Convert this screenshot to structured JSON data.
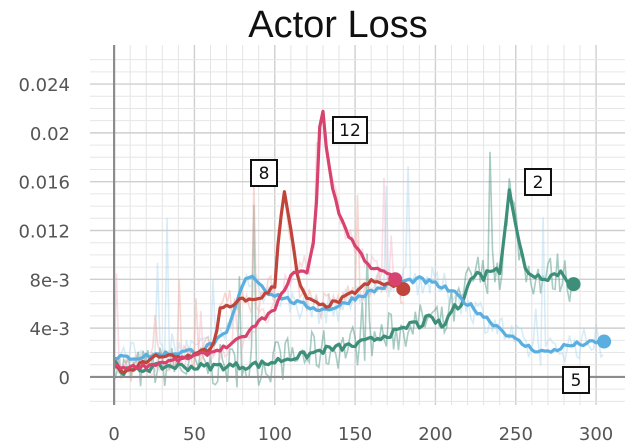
{
  "chart_data": {
    "type": "line",
    "title": "Actor Loss",
    "xlabel": "",
    "ylabel": "",
    "xlim": [
      -15,
      318
    ],
    "ylim": [
      -0.0023,
      0.0272
    ],
    "grid": true,
    "x_ticks": [
      0,
      50,
      100,
      150,
      200,
      250,
      300
    ],
    "x_tick_labels": [
      "0",
      "50",
      "100",
      "150",
      "200",
      "250",
      "300"
    ],
    "y_ticks": [
      0,
      0.004,
      0.008,
      0.012,
      0.016,
      0.02,
      0.024
    ],
    "y_tick_labels": [
      "0",
      "4e-3",
      "8e-3",
      "0.012",
      "0.016",
      "0.02",
      "0.024"
    ],
    "series": [
      {
        "name": "2",
        "color": "#3d8f7a",
        "raw_color": "#3d8f7a",
        "x": [
          0,
          3,
          10,
          20,
          35,
          50,
          65,
          80,
          95,
          110,
          120,
          130,
          140,
          150,
          160,
          170,
          180,
          185,
          190,
          195,
          200,
          205,
          210,
          215,
          220,
          225,
          230,
          235,
          240,
          243,
          246,
          248,
          252,
          256,
          262,
          270,
          278,
          282,
          286
        ],
        "y": [
          0.0015,
          0.0006,
          0.0004,
          0.0007,
          0.0009,
          0.0008,
          0.0009,
          0.0009,
          0.0011,
          0.0016,
          0.0018,
          0.0022,
          0.0024,
          0.0026,
          0.003,
          0.0035,
          0.0038,
          0.0045,
          0.0042,
          0.0048,
          0.0046,
          0.004,
          0.0055,
          0.0058,
          0.0075,
          0.0085,
          0.0082,
          0.009,
          0.0085,
          0.012,
          0.0155,
          0.014,
          0.011,
          0.0088,
          0.0083,
          0.0082,
          0.0086,
          0.008,
          0.0076
        ],
        "noise": 0.0018
      },
      {
        "name": "5",
        "color": "#5aaee0",
        "raw_color": "#a8d5f0",
        "x": [
          0,
          5,
          15,
          25,
          40,
          55,
          70,
          80,
          85,
          95,
          105,
          115,
          120,
          130,
          140,
          150,
          160,
          170,
          180,
          190,
          200,
          210,
          220,
          230,
          240,
          250,
          260,
          270,
          280,
          290,
          300,
          305
        ],
        "y": [
          0.0014,
          0.0016,
          0.0016,
          0.0018,
          0.002,
          0.0022,
          0.0035,
          0.0075,
          0.0085,
          0.007,
          0.0065,
          0.006,
          0.0058,
          0.0055,
          0.0058,
          0.0065,
          0.007,
          0.0075,
          0.0078,
          0.008,
          0.0076,
          0.007,
          0.006,
          0.005,
          0.004,
          0.003,
          0.0023,
          0.002,
          0.0025,
          0.0027,
          0.0028,
          0.0029
        ],
        "noise": 0.0013
      },
      {
        "name": "8",
        "color": "#c0443a",
        "raw_color": "#f0a8a0",
        "x": [
          0,
          5,
          10,
          15,
          20,
          25,
          30,
          35,
          40,
          45,
          50,
          55,
          60,
          63,
          66,
          70,
          75,
          80,
          85,
          90,
          95,
          100,
          103,
          106,
          110,
          115,
          120,
          125,
          130,
          140,
          150,
          160,
          170,
          180
        ],
        "y": [
          0.0008,
          0.0005,
          0.0004,
          0.0009,
          0.0013,
          0.0017,
          0.0015,
          0.0018,
          0.0016,
          0.0017,
          0.0018,
          0.0021,
          0.0023,
          0.0032,
          0.0055,
          0.0057,
          0.0058,
          0.0065,
          0.0062,
          0.0065,
          0.0068,
          0.0075,
          0.0125,
          0.0153,
          0.012,
          0.0075,
          0.0065,
          0.006,
          0.0058,
          0.0062,
          0.007,
          0.0078,
          0.0076,
          0.0072
        ],
        "noise": 0.0012
      },
      {
        "name": "12",
        "color": "#d8426e",
        "raw_color": "#f5b3c3",
        "x": [
          0,
          10,
          20,
          30,
          40,
          50,
          60,
          70,
          80,
          90,
          100,
          105,
          110,
          115,
          120,
          125,
          128,
          130,
          132,
          135,
          140,
          145,
          150,
          155,
          160,
          165,
          170,
          175
        ],
        "y": [
          0.0008,
          0.0008,
          0.0009,
          0.0012,
          0.0014,
          0.0017,
          0.002,
          0.0025,
          0.0032,
          0.0045,
          0.0055,
          0.007,
          0.0082,
          0.0088,
          0.0085,
          0.0115,
          0.0205,
          0.0218,
          0.019,
          0.016,
          0.0135,
          0.0118,
          0.0108,
          0.0098,
          0.009,
          0.0087,
          0.0085,
          0.008
        ],
        "noise": 0.001
      }
    ],
    "run_labels": [
      {
        "text": "12",
        "series": "12"
      },
      {
        "text": "8",
        "series": "8"
      },
      {
        "text": "2",
        "series": "2"
      },
      {
        "text": "5",
        "series": "5"
      }
    ]
  }
}
